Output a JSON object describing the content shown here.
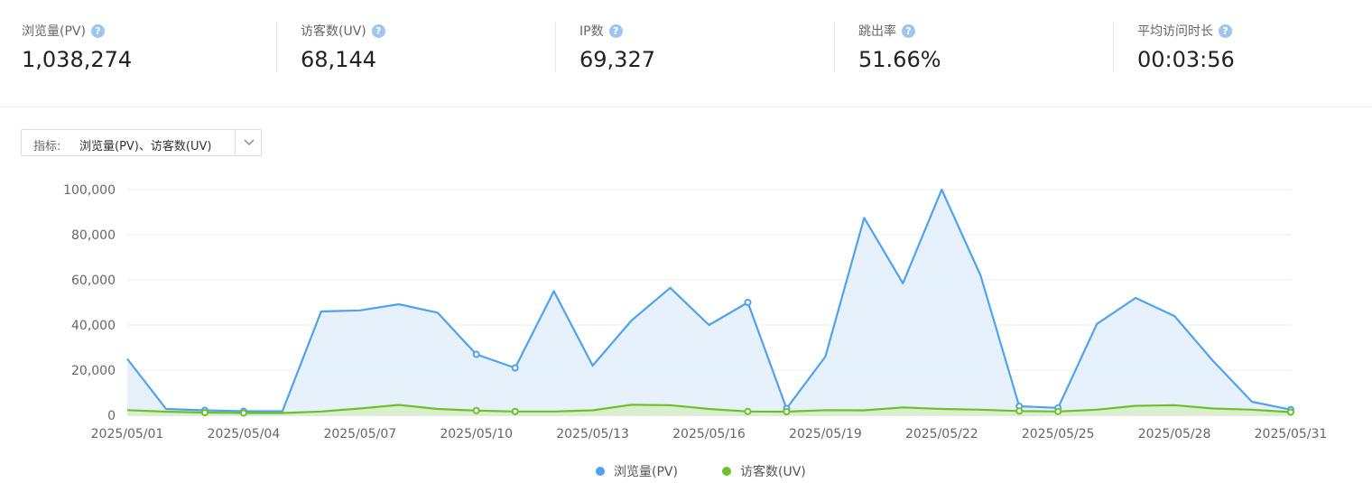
{
  "metrics": [
    {
      "label": "浏览量(PV)",
      "value": "1,038,274"
    },
    {
      "label": "访客数(UV)",
      "value": "68,144"
    },
    {
      "label": "IP数",
      "value": "69,327"
    },
    {
      "label": "跳出率",
      "value": "51.66%"
    },
    {
      "label": "平均访问时长",
      "value": "00:03:56"
    }
  ],
  "selector": {
    "prefix": "指标:",
    "value": "浏览量(PV)、访客数(UV)"
  },
  "colors": {
    "pv": "#4fa3ee",
    "pv_fill": "#e2effb",
    "uv": "#6cc12a",
    "uv_fill": "#d7efc6"
  },
  "chart_data": {
    "type": "area",
    "x": [
      "2025/05/01",
      "2025/05/02",
      "2025/05/03",
      "2025/05/04",
      "2025/05/05",
      "2025/05/06",
      "2025/05/07",
      "2025/05/08",
      "2025/05/09",
      "2025/05/10",
      "2025/05/11",
      "2025/05/12",
      "2025/05/13",
      "2025/05/14",
      "2025/05/15",
      "2025/05/16",
      "2025/05/17",
      "2025/05/18",
      "2025/05/19",
      "2025/05/20",
      "2025/05/21",
      "2025/05/22",
      "2025/05/23",
      "2025/05/24",
      "2025/05/25",
      "2025/05/26",
      "2025/05/27",
      "2025/05/28",
      "2025/05/29",
      "2025/05/30",
      "2025/05/31"
    ],
    "x_tick_labels": [
      "2025/05/01",
      "2025/05/04",
      "2025/05/07",
      "2025/05/10",
      "2025/05/13",
      "2025/05/16",
      "2025/05/19",
      "2025/05/22",
      "2025/05/25",
      "2025/05/28",
      "2025/05/31"
    ],
    "ylim": [
      0,
      100000
    ],
    "y_ticks": [
      "0",
      "20,000",
      "40,000",
      "60,000",
      "80,000",
      "100,000"
    ],
    "grid": true,
    "legend_position": "bottom",
    "series": [
      {
        "name": "浏览量(PV)",
        "values": [
          25000,
          2800,
          2200,
          1800,
          1800,
          46000,
          46500,
          49200,
          45500,
          27000,
          21000,
          55000,
          22000,
          42000,
          56500,
          40000,
          50000,
          3000,
          26000,
          87500,
          58500,
          100000,
          62000,
          4000,
          3300,
          40500,
          52000,
          44000,
          24000,
          6000,
          2500
        ]
      },
      {
        "name": "访客数(UV)",
        "values": [
          2300,
          1600,
          1200,
          1000,
          1000,
          1700,
          3000,
          4600,
          2800,
          2100,
          1700,
          1700,
          2200,
          4700,
          4500,
          2800,
          1700,
          1600,
          2300,
          2200,
          3500,
          2800,
          2500,
          1900,
          1700,
          2500,
          4200,
          4500,
          3000,
          2500,
          1400
        ]
      }
    ],
    "marked_points": [
      2,
      3,
      9,
      10,
      16,
      17,
      23,
      24,
      30
    ]
  }
}
